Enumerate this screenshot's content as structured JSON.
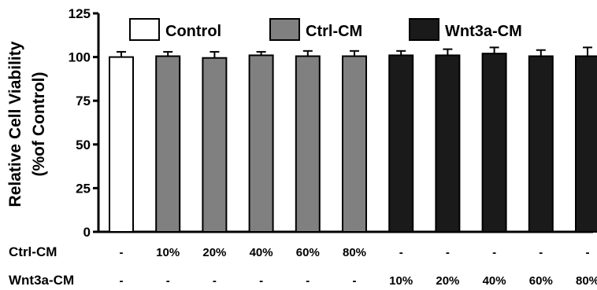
{
  "chart_data": {
    "type": "bar",
    "ylabel_line1": "Relative Cell Viability",
    "ylabel_line2": "(%of Control)",
    "ylim": [
      0,
      125
    ],
    "yticks": [
      "0",
      "25",
      "50",
      "75",
      "100",
      "125"
    ],
    "legend_position": "top",
    "legend": [
      {
        "name": "Control",
        "color": "#ffffff"
      },
      {
        "name": "Ctrl-CM",
        "color": "#808080"
      },
      {
        "name": "Wnt3a-CM",
        "color": "#1a1a1a"
      }
    ],
    "bars": [
      {
        "group": "Control",
        "value": 100,
        "error": 3
      },
      {
        "group": "Ctrl-CM",
        "value": 100.5,
        "error": 2.5
      },
      {
        "group": "Ctrl-CM",
        "value": 99.5,
        "error": 3.5
      },
      {
        "group": "Ctrl-CM",
        "value": 101,
        "error": 2
      },
      {
        "group": "Ctrl-CM",
        "value": 100.5,
        "error": 3
      },
      {
        "group": "Ctrl-CM",
        "value": 100.5,
        "error": 3
      },
      {
        "group": "Wnt3a-CM",
        "value": 101,
        "error": 2.5
      },
      {
        "group": "Wnt3a-CM",
        "value": 101,
        "error": 3.5
      },
      {
        "group": "Wnt3a-CM",
        "value": 102,
        "error": 3.5
      },
      {
        "group": "Wnt3a-CM",
        "value": 100.5,
        "error": 3.5
      },
      {
        "group": "Wnt3a-CM",
        "value": 100.5,
        "error": 5
      }
    ],
    "condition_rows": [
      {
        "label": "Ctrl-CM",
        "values": [
          "-",
          "10%",
          "20%",
          "40%",
          "60%",
          "80%",
          "-",
          "-",
          "-",
          "-",
          "-"
        ]
      },
      {
        "label": "Wnt3a-CM",
        "values": [
          "-",
          "-",
          "-",
          "-",
          "-",
          "-",
          "10%",
          "20%",
          "40%",
          "60%",
          "80%"
        ]
      }
    ]
  }
}
